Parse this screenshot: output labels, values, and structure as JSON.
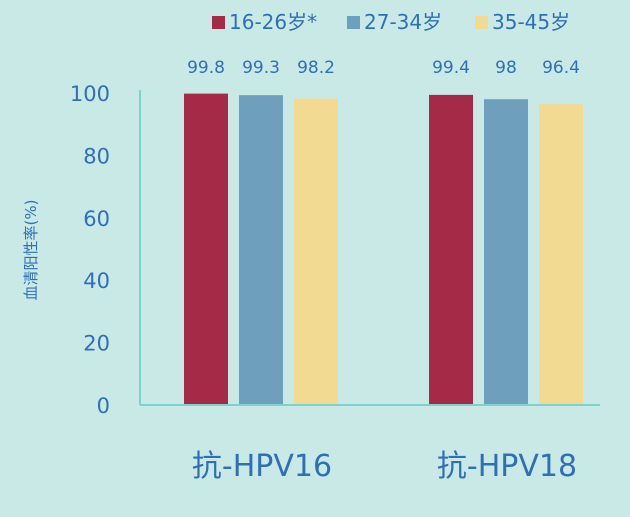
{
  "chart_data": {
    "type": "bar",
    "categories": [
      "抗-HPV16",
      "抗-HPV18"
    ],
    "series": [
      {
        "name": "16-26岁*",
        "values": [
          99.8,
          99.4
        ],
        "color": "#a52a47"
      },
      {
        "name": "27-34岁",
        "values": [
          99.3,
          98
        ],
        "color": "#6e9fbc"
      },
      {
        "name": "35-45岁",
        "values": [
          98.2,
          96.4
        ],
        "color": "#f2da92"
      }
    ],
    "value_labels": [
      [
        "99.8",
        "99.4"
      ],
      [
        "99.3",
        "98"
      ],
      [
        "98.2",
        "96.4"
      ]
    ],
    "yticks": [
      "0",
      "20",
      "40",
      "60",
      "80",
      "100"
    ],
    "ylabel": "血清阳性率(%)",
    "ylim": [
      0,
      100
    ],
    "legend": "top",
    "grid": false,
    "axis_color": "#7dd3cc"
  }
}
